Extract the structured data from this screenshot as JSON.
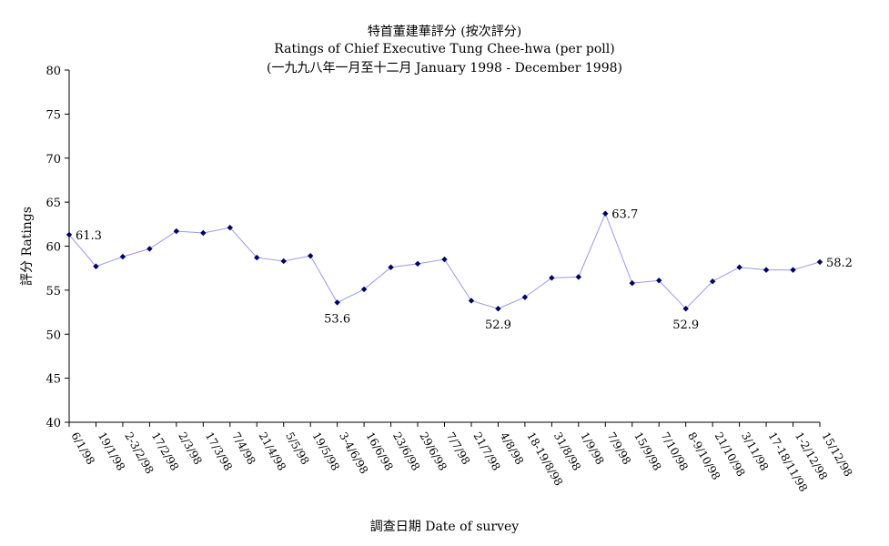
{
  "chart_data": {
    "type": "line",
    "title": "特首董建華評分 (按次評分)",
    "subtitle": "Ratings of Chief Executive Tung Chee-hwa (per poll)",
    "subtitle2": "(一九九八年一月至十二月 January 1998 - December 1998)",
    "xlabel": "調查日期 Date of survey",
    "ylabel": "評分 Ratings",
    "ylim": [
      40,
      80
    ],
    "yticks": [
      40,
      45,
      50,
      55,
      60,
      65,
      70,
      75,
      80
    ],
    "grid": false,
    "legend": "none",
    "categories": [
      "6/1/98",
      "19/1/98",
      "2-3/2/98",
      "17/2/98",
      "2/3/98",
      "17/3/98",
      "7/4/98",
      "21/4/98",
      "5/5/98",
      "19/5/98",
      "3-4/6/98",
      "16/6/98",
      "23/6/98",
      "29/6/98",
      "7/7/98",
      "21/7/98",
      "4/8/98",
      "18-19/8/98",
      "31/8/98",
      "1/9/98",
      "7/9/98",
      "15/9/98",
      "7/10/98",
      "8-9/10/98",
      "21/10/98",
      "3/11/98",
      "17-18/11/98",
      "1-2/12/98",
      "15/12/98"
    ],
    "series": [
      {
        "color": "#9999ee",
        "marker_color": "#000066",
        "values": [
          61.3,
          57.7,
          58.8,
          59.7,
          61.7,
          61.5,
          62.1,
          58.7,
          58.3,
          58.9,
          53.6,
          55.1,
          57.6,
          58.0,
          58.5,
          53.8,
          52.9,
          54.2,
          56.4,
          56.5,
          63.7,
          55.8,
          56.1,
          52.9,
          56.0,
          57.6,
          57.3,
          57.3,
          58.2
        ]
      }
    ],
    "annotations": [
      {
        "index": 0,
        "text": "61.3",
        "position": "right"
      },
      {
        "index": 10,
        "text": "53.6",
        "position": "below"
      },
      {
        "index": 16,
        "text": "52.9",
        "position": "below"
      },
      {
        "index": 20,
        "text": "63.7",
        "position": "right"
      },
      {
        "index": 23,
        "text": "52.9",
        "position": "below"
      },
      {
        "index": 28,
        "text": "58.2",
        "position": "right"
      }
    ]
  }
}
